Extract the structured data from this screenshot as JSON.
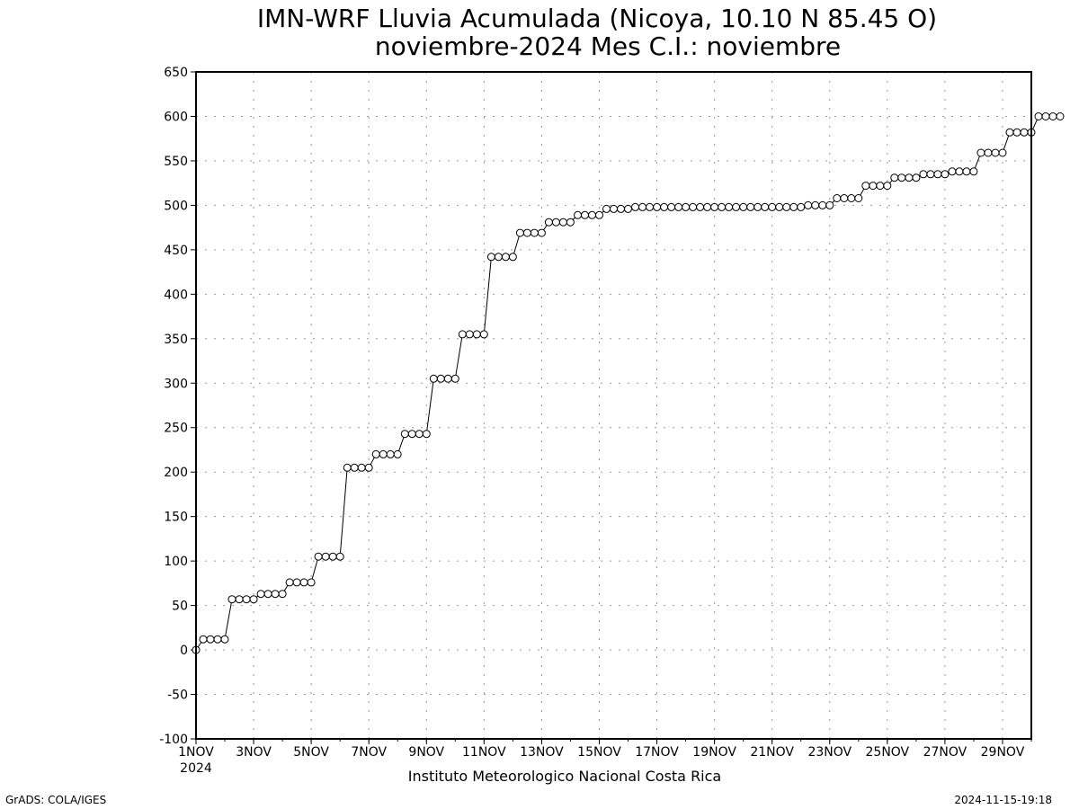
{
  "chart_data": {
    "type": "line",
    "title_line1": "IMN-WRF  Lluvia Acumulada (Nicoya, 10.10  N 85.45  O)",
    "title_line2": "noviembre-2024 Mes C.I.: noviembre",
    "xlabel": "Instituto Meteorologico Nacional Costa Rica",
    "year_label": "2024",
    "ylim": [
      -100,
      650
    ],
    "y_ticks": [
      -100,
      -50,
      0,
      50,
      100,
      150,
      200,
      250,
      300,
      350,
      400,
      450,
      500,
      550,
      600,
      650
    ],
    "x_range_days": [
      1,
      30
    ],
    "x_ticks": [
      {
        "day": 1,
        "label": "1NOV"
      },
      {
        "day": 3,
        "label": "3NOV"
      },
      {
        "day": 5,
        "label": "5NOV"
      },
      {
        "day": 7,
        "label": "7NOV"
      },
      {
        "day": 9,
        "label": "9NOV"
      },
      {
        "day": 11,
        "label": "11NOV"
      },
      {
        "day": 13,
        "label": "13NOV"
      },
      {
        "day": 15,
        "label": "15NOV"
      },
      {
        "day": 17,
        "label": "17NOV"
      },
      {
        "day": 19,
        "label": "19NOV"
      },
      {
        "day": 21,
        "label": "21NOV"
      },
      {
        "day": 23,
        "label": "23NOV"
      },
      {
        "day": 25,
        "label": "25NOV"
      },
      {
        "day": 27,
        "label": "27NOV"
      },
      {
        "day": 29,
        "label": "29NOV"
      }
    ],
    "grid": true,
    "marker": "open-circle",
    "series": [
      {
        "step_days": 0.25,
        "start_day": 1,
        "values": [
          0,
          12,
          12,
          12,
          12,
          57,
          57,
          57,
          57,
          63,
          63,
          63,
          63,
          76,
          76,
          76,
          76,
          105,
          105,
          105,
          105,
          205,
          205,
          205,
          205,
          220,
          220,
          220,
          220,
          243,
          243,
          243,
          243,
          305,
          305,
          305,
          305,
          355,
          355,
          355,
          355,
          442,
          442,
          442,
          442,
          469,
          469,
          469,
          469,
          481,
          481,
          481,
          481,
          489,
          489,
          489,
          489,
          496,
          496,
          496,
          496,
          498,
          498,
          498,
          498,
          498,
          498,
          498,
          498,
          498,
          498,
          498,
          498,
          498,
          498,
          498,
          498,
          498,
          498,
          498,
          498,
          498,
          498,
          498,
          498,
          500,
          500,
          500,
          500,
          508,
          508,
          508,
          508,
          522,
          522,
          522,
          522,
          531,
          531,
          531,
          531,
          535,
          535,
          535,
          535,
          538,
          538,
          538,
          538,
          559,
          559,
          559,
          559,
          582,
          582,
          582,
          582,
          600,
          600,
          600,
          600
        ]
      }
    ]
  },
  "footer": {
    "left": "GrADS: COLA/IGES",
    "right": "2024-11-15-19:18"
  }
}
